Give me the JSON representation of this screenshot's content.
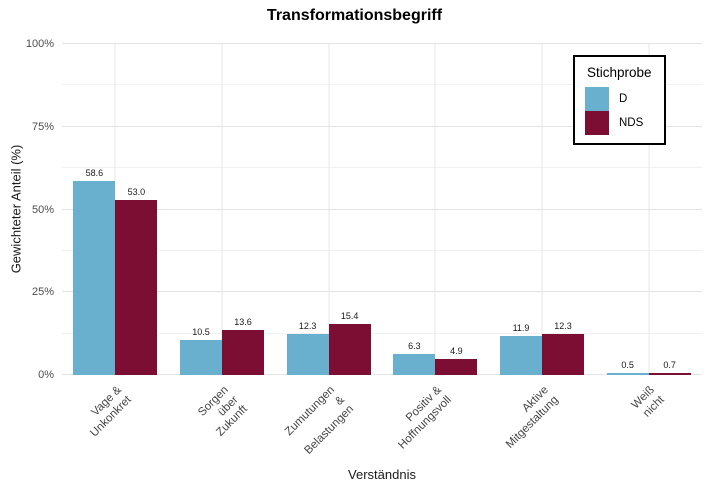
{
  "title": "Transformationsbegriff",
  "y_axis": {
    "label": "Gewichteter Anteil (%)",
    "ticks": [
      {
        "percent": 0,
        "label": "0%"
      },
      {
        "percent": 25,
        "label": "25%"
      },
      {
        "percent": 50,
        "label": "50%"
      },
      {
        "percent": 75,
        "label": "75%"
      },
      {
        "percent": 100,
        "label": "100%"
      }
    ],
    "minor_gridlines_percent": [
      12.5,
      37.5,
      62.5,
      87.5
    ]
  },
  "x_axis": {
    "label": "Verständnis"
  },
  "legend": {
    "title": "Stichprobe",
    "items": [
      {
        "label": "D",
        "color": "#69B0CF"
      },
      {
        "label": "NDS",
        "color": "#7D0E33"
      }
    ]
  },
  "chart_data": {
    "type": "bar",
    "title": "Transformationsbegriff",
    "xlabel": "Verständnis",
    "ylabel": "Gewichteter Anteil (%)",
    "ylim": [
      0,
      100
    ],
    "grid": true,
    "legend_position": "top-right",
    "categories": [
      "Vage &\nUnkonkret",
      "Sorgen über\nZukunft",
      "Zumutungen &\nBelastungen",
      "Positiv &\nHoffnungsvoll",
      "Aktive\nMitgestaltung",
      "Weiß nicht"
    ],
    "series": [
      {
        "name": "D",
        "color": "#69B0CF",
        "values": [
          58.6,
          10.5,
          12.3,
          6.3,
          11.9,
          0.5
        ]
      },
      {
        "name": "NDS",
        "color": "#7D0E33",
        "values": [
          53.0,
          13.6,
          15.4,
          4.9,
          12.3,
          0.7
        ]
      }
    ]
  }
}
